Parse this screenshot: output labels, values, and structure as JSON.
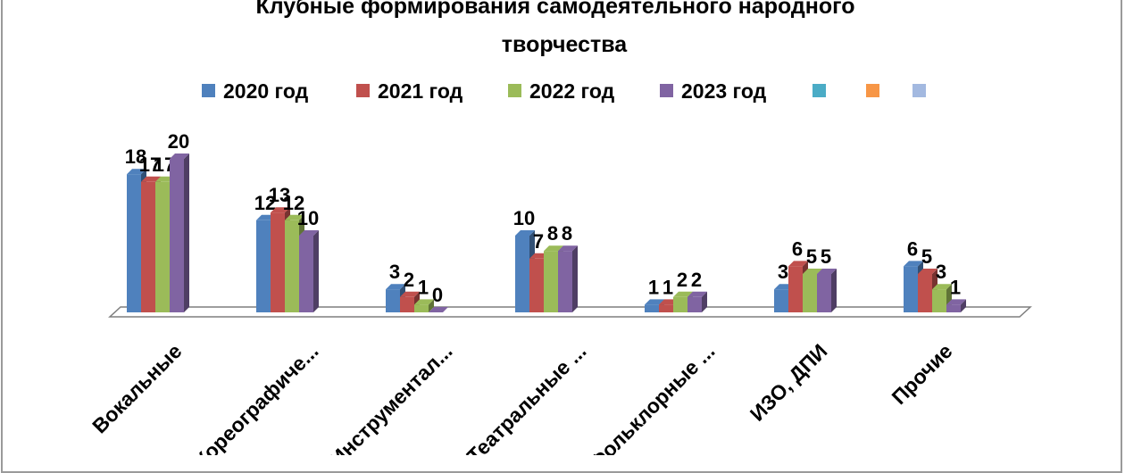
{
  "chart_data": {
    "type": "bar",
    "title_line1": "Клубные формирования самодеятельного народного",
    "title_line2": "творчества",
    "categories": [
      "Вокальные",
      "Хореографиче...",
      "Инструментал...",
      "Театральные ...",
      "Фольклорные ...",
      "ИЗО, ДПИ",
      "Прочие"
    ],
    "series": [
      {
        "name": "2020 год",
        "color": "#4f81bd",
        "values": [
          18,
          12,
          3,
          10,
          1,
          3,
          6
        ]
      },
      {
        "name": "2021 год",
        "color": "#c0504d",
        "values": [
          17,
          13,
          2,
          7,
          1,
          6,
          5
        ]
      },
      {
        "name": "2022 год",
        "color": "#9bbb59",
        "values": [
          17,
          12,
          1,
          8,
          2,
          5,
          3
        ]
      },
      {
        "name": "2023 год",
        "color": "#8064a2",
        "values": [
          20,
          10,
          0,
          8,
          2,
          5,
          1
        ]
      }
    ],
    "legend_extra": [
      {
        "name": "",
        "color": "#4bacc6"
      },
      {
        "name": "",
        "color": "#f79646"
      },
      {
        "name": "",
        "color": "#a3b9e0"
      }
    ],
    "legend_position": "top",
    "ylim": [
      0,
      20
    ],
    "grid": false,
    "xlabel": "",
    "ylabel": ""
  }
}
